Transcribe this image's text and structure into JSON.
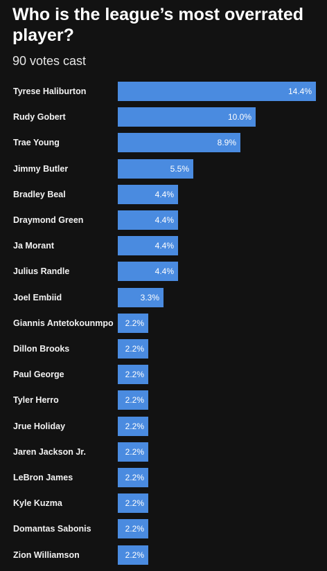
{
  "title": "Who is the league’s most overrated player?",
  "subtitle": "90 votes cast",
  "colors": {
    "background": "#121212",
    "bar": "#4a8be0",
    "text": "#ffffff"
  },
  "chart_data": {
    "type": "bar",
    "orientation": "horizontal",
    "title": "Who is the league’s most overrated player?",
    "subtitle": "90 votes cast",
    "unit": "%",
    "xlim": [
      0,
      14.4
    ],
    "categories": [
      "Tyrese Haliburton",
      "Rudy Gobert",
      "Trae Young",
      "Jimmy Butler",
      "Bradley Beal",
      "Draymond Green",
      "Ja Morant",
      "Julius Randle",
      "Joel Embiid",
      "Giannis Antetokounmpo",
      "Dillon Brooks",
      "Paul George",
      "Tyler Herro",
      "Jrue Holiday",
      "Jaren Jackson Jr.",
      "LeBron James",
      "Kyle Kuzma",
      "Domantas Sabonis",
      "Zion Williamson"
    ],
    "values": [
      14.4,
      10.0,
      8.9,
      5.5,
      4.4,
      4.4,
      4.4,
      4.4,
      3.3,
      2.2,
      2.2,
      2.2,
      2.2,
      2.2,
      2.2,
      2.2,
      2.2,
      2.2,
      2.2
    ],
    "value_labels": [
      "14.4%",
      "10.0%",
      "8.9%",
      "5.5%",
      "4.4%",
      "4.4%",
      "4.4%",
      "4.4%",
      "3.3%",
      "2.2%",
      "2.2%",
      "2.2%",
      "2.2%",
      "2.2%",
      "2.2%",
      "2.2%",
      "2.2%",
      "2.2%",
      "2.2%"
    ]
  }
}
